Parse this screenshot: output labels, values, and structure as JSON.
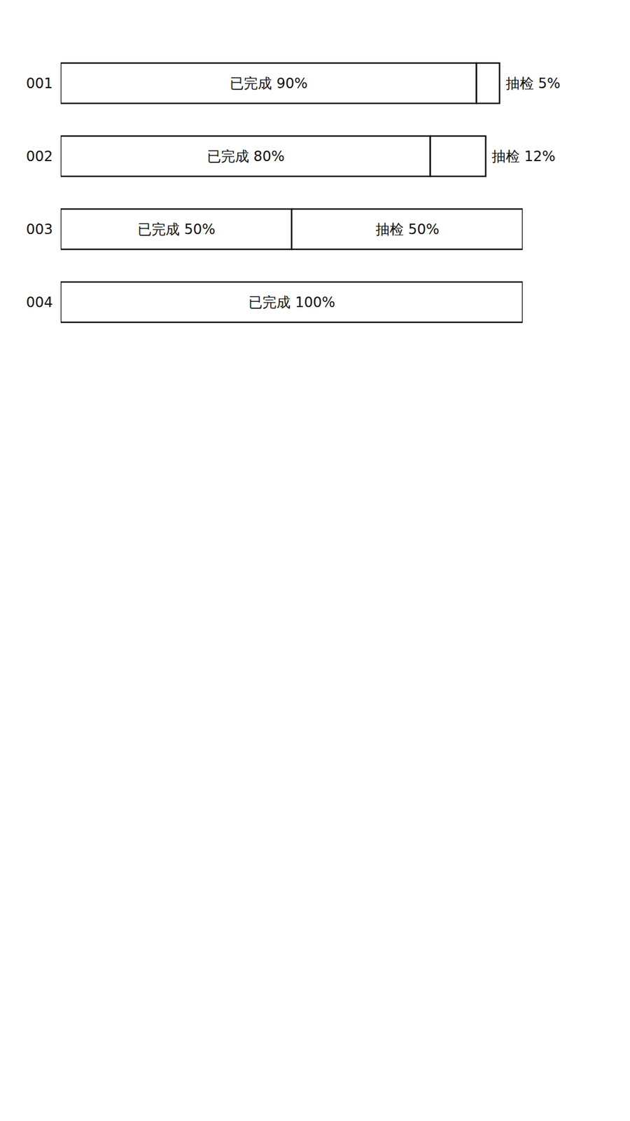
{
  "chart_data": {
    "type": "bar",
    "orientation": "horizontal",
    "stacked": true,
    "data_labels": true,
    "tick_labels": "y",
    "categories": [
      "001",
      "002",
      "003",
      "004"
    ],
    "xlim": [
      0,
      100
    ],
    "series": [
      {
        "name": "已完成",
        "color": "#ffffff",
        "values": [
          90,
          80,
          50,
          100
        ],
        "value_labels": [
          "90%",
          "80%",
          "50%",
          "100%"
        ]
      },
      {
        "name": "抽检",
        "color": "#ffffff",
        "values": [
          5,
          12,
          50,
          null
        ],
        "value_labels": [
          "5%",
          "12%",
          "50%",
          null
        ]
      }
    ]
  }
}
